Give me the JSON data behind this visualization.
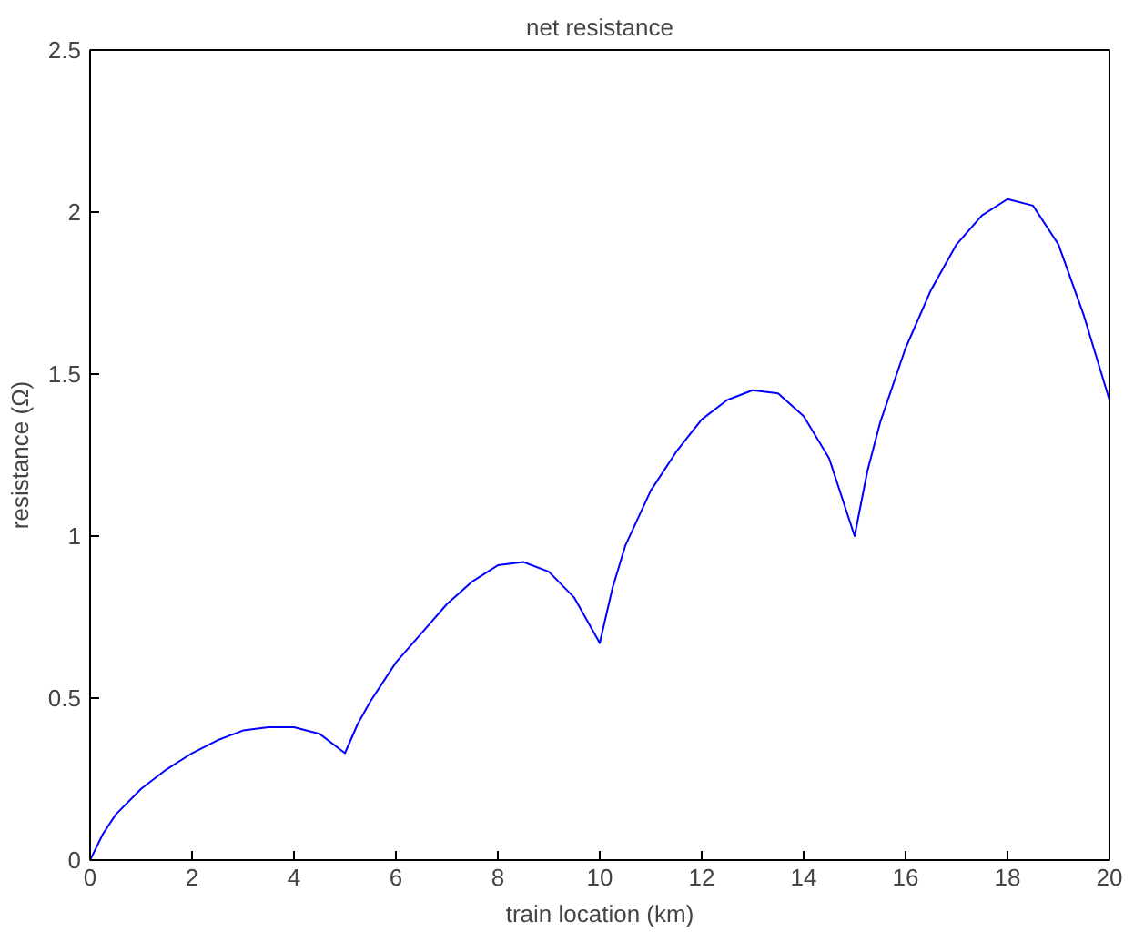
{
  "chart_data": {
    "type": "line",
    "title": "net resistance",
    "xlabel": "train location (km)",
    "ylabel": "resistance (Ω)",
    "x": [
      0,
      0.25,
      0.5,
      1,
      1.5,
      2,
      2.5,
      3,
      3.5,
      4,
      4.5,
      5,
      5.25,
      5.5,
      6,
      6.5,
      7,
      7.5,
      8,
      8.5,
      9,
      9.5,
      10,
      10.25,
      10.5,
      11,
      11.5,
      12,
      12.5,
      13,
      13.5,
      14,
      14.5,
      15,
      15.25,
      15.5,
      16,
      16.5,
      17,
      17.5,
      18,
      18.5,
      19,
      19.5,
      20
    ],
    "series": [
      {
        "color": "#0000ff",
        "values": [
          0,
          0.08,
          0.14,
          0.22,
          0.28,
          0.33,
          0.37,
          0.4,
          0.41,
          0.41,
          0.39,
          0.33,
          0.42,
          0.49,
          0.61,
          0.7,
          0.79,
          0.86,
          0.91,
          0.92,
          0.89,
          0.81,
          0.67,
          0.84,
          0.97,
          1.14,
          1.26,
          1.36,
          1.42,
          1.45,
          1.44,
          1.37,
          1.24,
          1.0,
          1.2,
          1.35,
          1.58,
          1.76,
          1.9,
          1.99,
          2.04,
          2.02,
          1.9,
          1.68,
          1.42
        ]
      }
    ],
    "xlim": [
      0,
      20
    ],
    "ylim": [
      0,
      2.5
    ],
    "xticks": [
      0,
      2,
      4,
      6,
      8,
      10,
      12,
      14,
      16,
      18,
      20
    ],
    "yticks": [
      0,
      0.5,
      1,
      1.5,
      2,
      2.5
    ],
    "grid": false,
    "marker": "none",
    "line_style": "solid"
  }
}
